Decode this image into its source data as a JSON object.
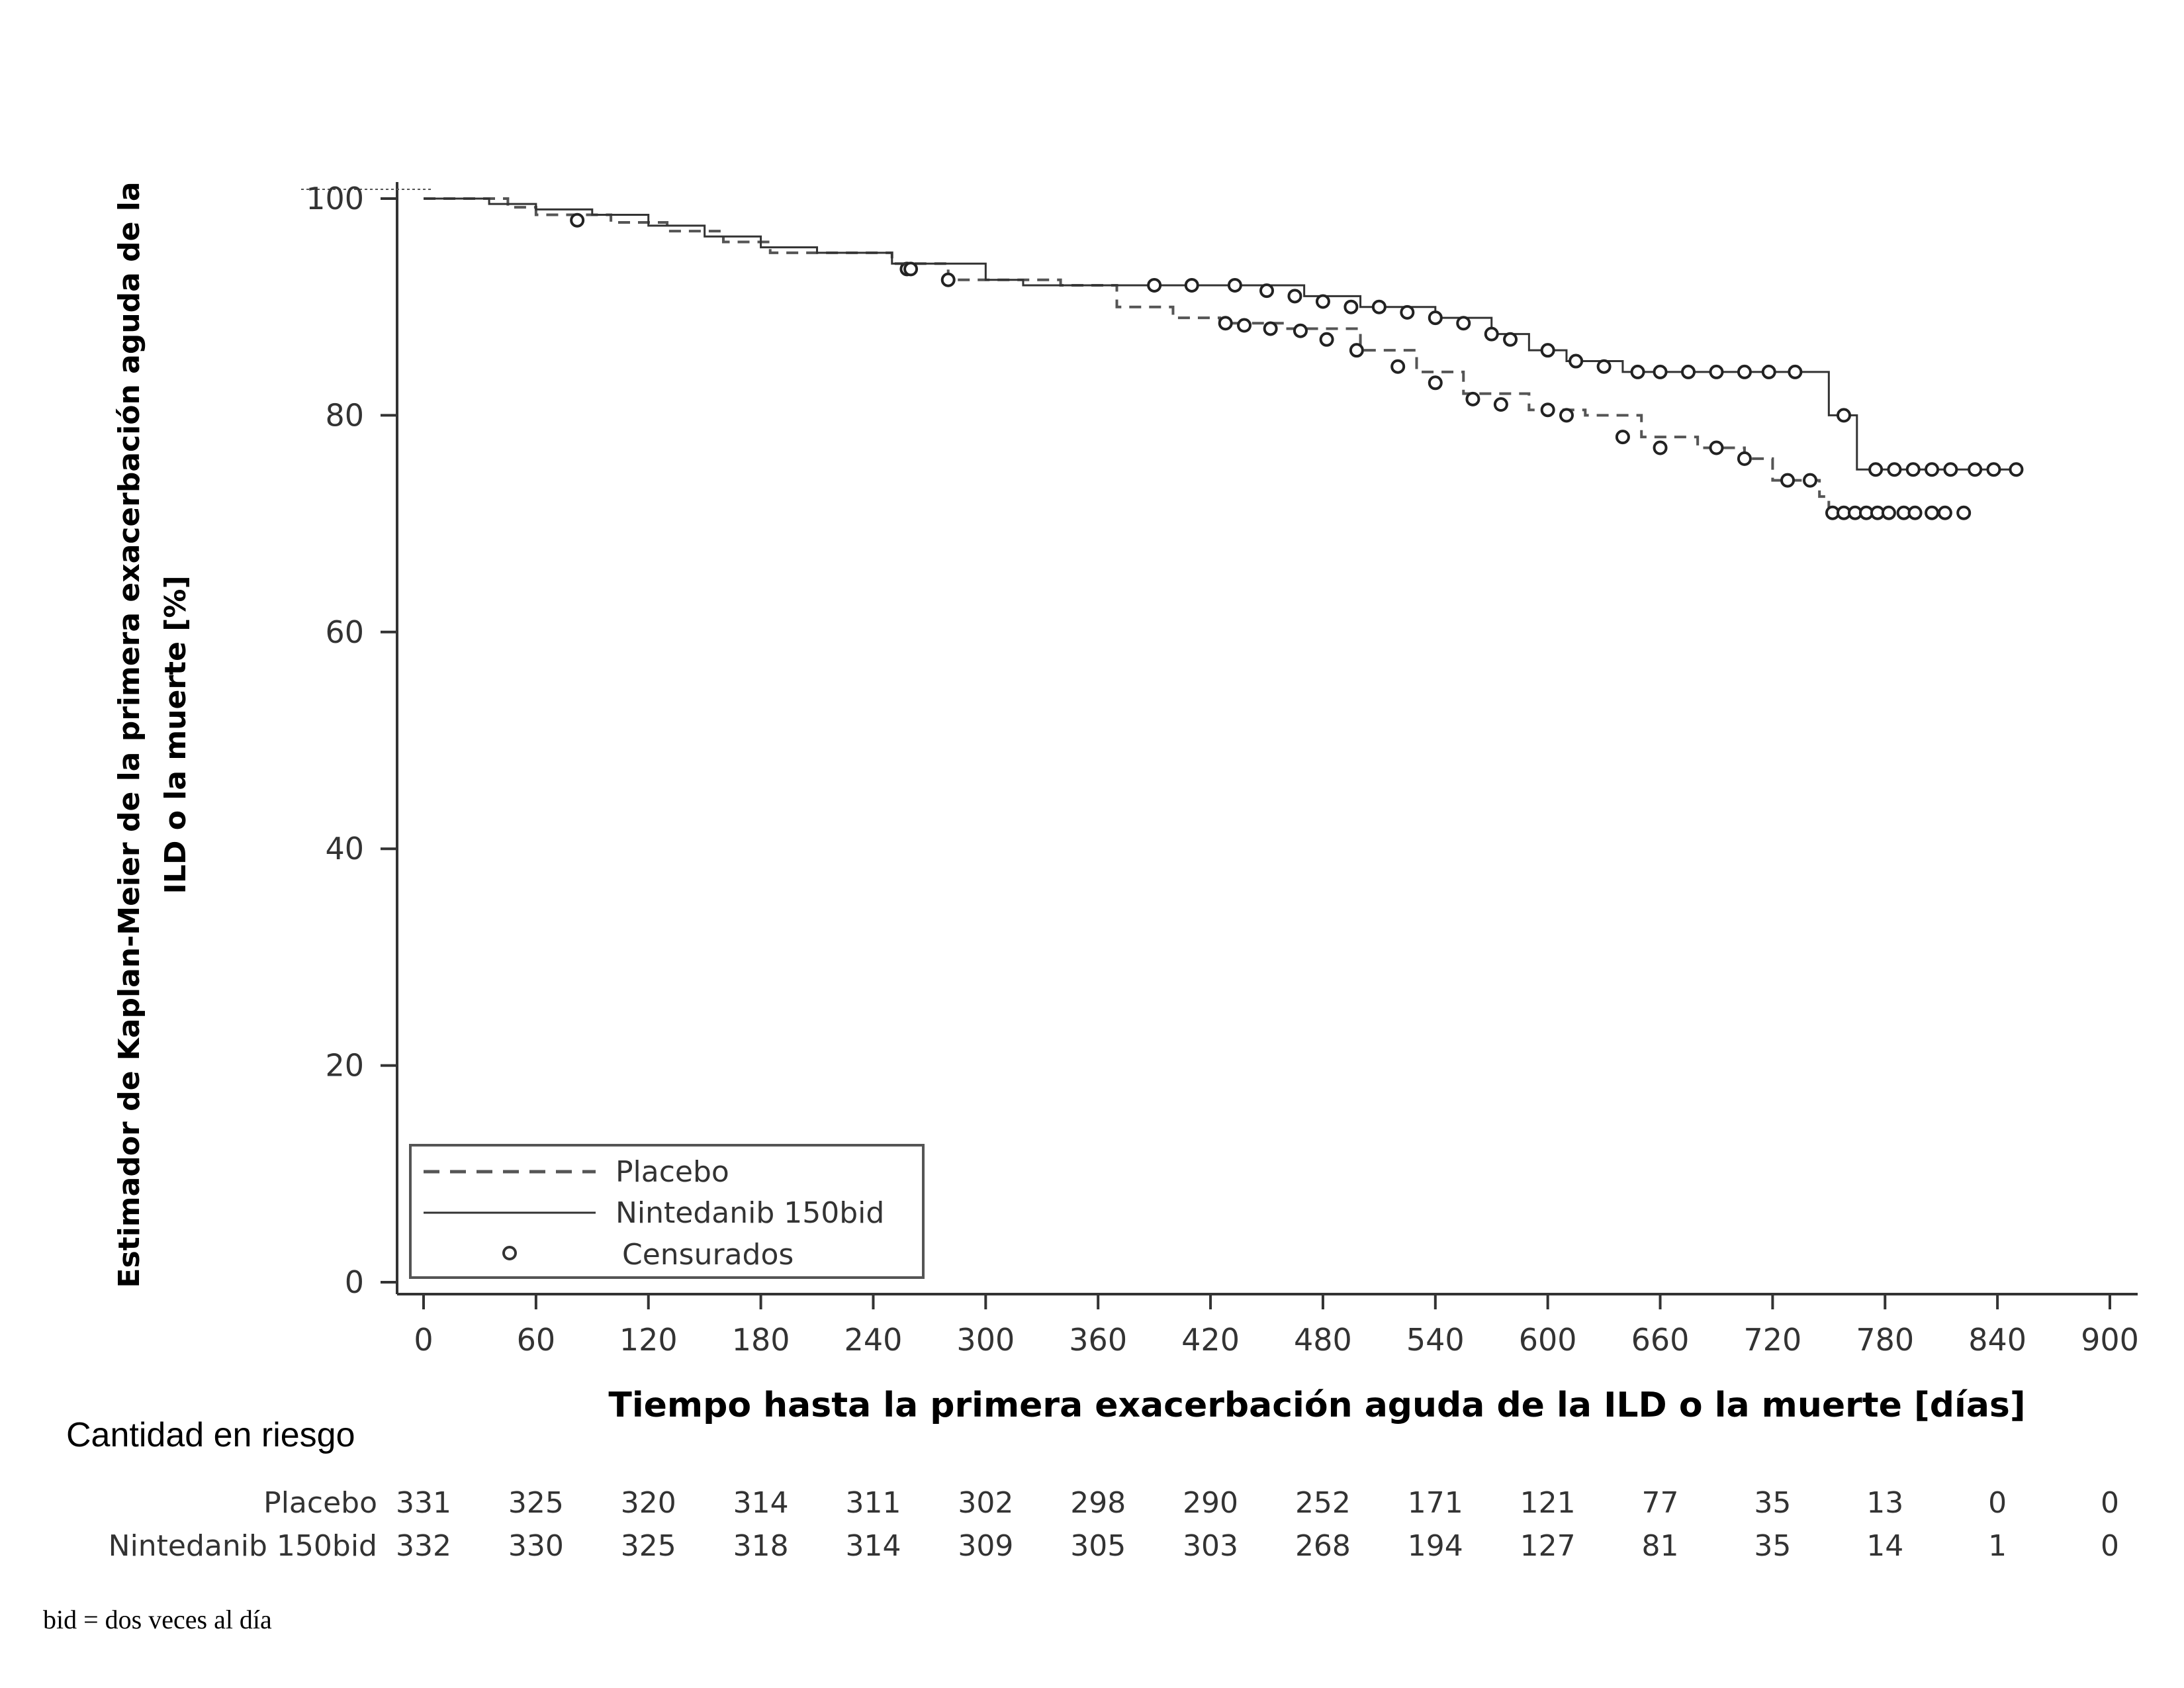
{
  "chart_data": {
    "type": "line",
    "subtype": "kaplan-meier",
    "title": "",
    "xlabel": "Tiempo hasta la primera exacerbación aguda de la ILD o la muerte [días]",
    "ylabel_lines": [
      "Estimador de Kaplan-Meier de la primera exacerbación aguda de la",
      "ILD o la muerte [%]"
    ],
    "xlim": [
      0,
      900
    ],
    "ylim": [
      0,
      100
    ],
    "x_ticks": [
      0,
      60,
      120,
      180,
      240,
      300,
      360,
      420,
      480,
      540,
      600,
      660,
      720,
      780,
      840,
      900
    ],
    "y_ticks": [
      0,
      20,
      40,
      60,
      80,
      100
    ],
    "grid": false,
    "legend_position": "bottom-left",
    "legend": [
      {
        "label": "Placebo",
        "style": "dashed"
      },
      {
        "label": "Nintedanib 150bid",
        "style": "solid"
      },
      {
        "label": "Censurados",
        "style": "marker"
      }
    ],
    "series": [
      {
        "name": "Placebo",
        "style": "dashed",
        "points": [
          [
            0,
            100
          ],
          [
            45,
            99.2
          ],
          [
            60,
            98.5
          ],
          [
            100,
            97.8
          ],
          [
            130,
            97
          ],
          [
            160,
            96
          ],
          [
            185,
            95
          ],
          [
            210,
            95
          ],
          [
            250,
            94
          ],
          [
            280,
            92.5
          ],
          [
            340,
            92
          ],
          [
            370,
            90
          ],
          [
            400,
            89
          ],
          [
            425,
            88.5
          ],
          [
            460,
            88
          ],
          [
            500,
            86
          ],
          [
            530,
            84
          ],
          [
            555,
            82
          ],
          [
            590,
            80.5
          ],
          [
            620,
            80
          ],
          [
            650,
            78
          ],
          [
            680,
            77
          ],
          [
            705,
            76
          ],
          [
            720,
            74
          ],
          [
            745,
            72.5
          ],
          [
            750,
            71
          ]
        ],
        "censored": [
          [
            82,
            98
          ],
          [
            258,
            93.5
          ],
          [
            280,
            92.5
          ],
          [
            428,
            88.5
          ],
          [
            438,
            88.3
          ],
          [
            452,
            88
          ],
          [
            468,
            87.8
          ],
          [
            482,
            87
          ],
          [
            498,
            86
          ],
          [
            520,
            84.5
          ],
          [
            540,
            83
          ],
          [
            560,
            81.5
          ],
          [
            575,
            81
          ],
          [
            600,
            80.5
          ],
          [
            610,
            80
          ],
          [
            640,
            78
          ],
          [
            660,
            77
          ],
          [
            690,
            77
          ],
          [
            705,
            76
          ],
          [
            728,
            74
          ],
          [
            740,
            74
          ],
          [
            752,
            71
          ],
          [
            758,
            71
          ],
          [
            764,
            71
          ],
          [
            770,
            71
          ],
          [
            776,
            71
          ],
          [
            782,
            71
          ],
          [
            790,
            71
          ],
          [
            796,
            71
          ],
          [
            805,
            71
          ],
          [
            812,
            71
          ],
          [
            822,
            71
          ]
        ]
      },
      {
        "name": "Nintedanib 150bid",
        "style": "solid",
        "points": [
          [
            0,
            100
          ],
          [
            35,
            99.5
          ],
          [
            60,
            99
          ],
          [
            90,
            98.5
          ],
          [
            120,
            97.5
          ],
          [
            150,
            96.5
          ],
          [
            180,
            95.5
          ],
          [
            210,
            95
          ],
          [
            250,
            94
          ],
          [
            300,
            92.5
          ],
          [
            320,
            92
          ],
          [
            440,
            92
          ],
          [
            470,
            91
          ],
          [
            500,
            90
          ],
          [
            540,
            89
          ],
          [
            570,
            87.5
          ],
          [
            590,
            86
          ],
          [
            610,
            85
          ],
          [
            640,
            84
          ],
          [
            700,
            84
          ],
          [
            745,
            84
          ],
          [
            750,
            80
          ],
          [
            763,
            80
          ],
          [
            765,
            75
          ],
          [
            790,
            75
          ],
          [
            850,
            75
          ]
        ],
        "censored": [
          [
            260,
            93.5
          ],
          [
            390,
            92
          ],
          [
            410,
            92
          ],
          [
            433,
            92
          ],
          [
            450,
            91.5
          ],
          [
            465,
            91
          ],
          [
            480,
            90.5
          ],
          [
            495,
            90
          ],
          [
            510,
            90
          ],
          [
            525,
            89.5
          ],
          [
            540,
            89
          ],
          [
            555,
            88.5
          ],
          [
            570,
            87.5
          ],
          [
            580,
            87
          ],
          [
            600,
            86
          ],
          [
            615,
            85
          ],
          [
            630,
            84.5
          ],
          [
            648,
            84
          ],
          [
            660,
            84
          ],
          [
            675,
            84
          ],
          [
            690,
            84
          ],
          [
            705,
            84
          ],
          [
            718,
            84
          ],
          [
            732,
            84
          ],
          [
            758,
            80
          ],
          [
            775,
            75
          ],
          [
            785,
            75
          ],
          [
            795,
            75
          ],
          [
            805,
            75
          ],
          [
            815,
            75
          ],
          [
            828,
            75
          ],
          [
            838,
            75
          ],
          [
            850,
            75
          ]
        ]
      }
    ],
    "risk_table": {
      "title": "Cantidad en riesgo",
      "timepoints": [
        0,
        60,
        120,
        180,
        240,
        300,
        360,
        420,
        480,
        540,
        600,
        660,
        720,
        780,
        840,
        900
      ],
      "rows": [
        {
          "label": "Placebo",
          "values": [
            331,
            325,
            320,
            314,
            311,
            302,
            298,
            290,
            252,
            171,
            121,
            77,
            35,
            13,
            0,
            0
          ]
        },
        {
          "label": "Nintedanib 150bid",
          "values": [
            332,
            330,
            325,
            318,
            314,
            309,
            305,
            303,
            268,
            194,
            127,
            81,
            35,
            14,
            1,
            0
          ]
        }
      ]
    },
    "footnote": "bid = dos veces al día"
  }
}
